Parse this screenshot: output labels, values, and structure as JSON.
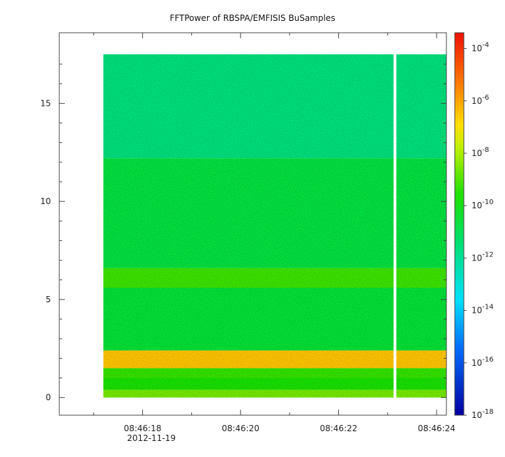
{
  "chart_data": {
    "type": "heatmap",
    "title": "FFTPower of RBSPA/EMFISIS  BuSamples",
    "xlabel": "",
    "ylabel": "",
    "x_ticks": [
      "08:46:18",
      "08:46:20",
      "08:46:22",
      "08:46:24"
    ],
    "x_tick_values_sec": [
      18,
      20,
      22,
      24
    ],
    "x_date_label": "2012-11-19",
    "x_range_sec": [
      16.3,
      24.2
    ],
    "data_x_range_sec": [
      17.2,
      24.2
    ],
    "data_gap_sec": 23.15,
    "y_ticks": [
      "0",
      "5",
      "10",
      "15"
    ],
    "y_tick_values": [
      0,
      5,
      10,
      15
    ],
    "ylim": [
      -0.9,
      18.6
    ],
    "data_y_range": [
      0,
      17.5
    ],
    "colorbar": {
      "scale": "log",
      "range_exp": [
        -18,
        -3.4
      ],
      "tick_exponents": [
        -4,
        -6,
        -8,
        -10,
        -12,
        -14,
        -16,
        -18
      ],
      "tick_base": "10"
    },
    "bands": [
      {
        "y_from": 0,
        "y_to": 0.4,
        "log_power": -8.6
      },
      {
        "y_from": 0.4,
        "y_to": 1.0,
        "log_power": -9.7
      },
      {
        "y_from": 1.0,
        "y_to": 1.5,
        "log_power": -9.3
      },
      {
        "y_from": 1.5,
        "y_to": 2.4,
        "log_power": -6.5
      },
      {
        "y_from": 2.4,
        "y_to": 5.6,
        "log_power": -10.5
      },
      {
        "y_from": 5.6,
        "y_to": 6.6,
        "log_power": -9.2
      },
      {
        "y_from": 6.6,
        "y_to": 12.2,
        "log_power": -10.6
      },
      {
        "y_from": 12.2,
        "y_to": 17.5,
        "log_power": -11.6
      }
    ]
  }
}
